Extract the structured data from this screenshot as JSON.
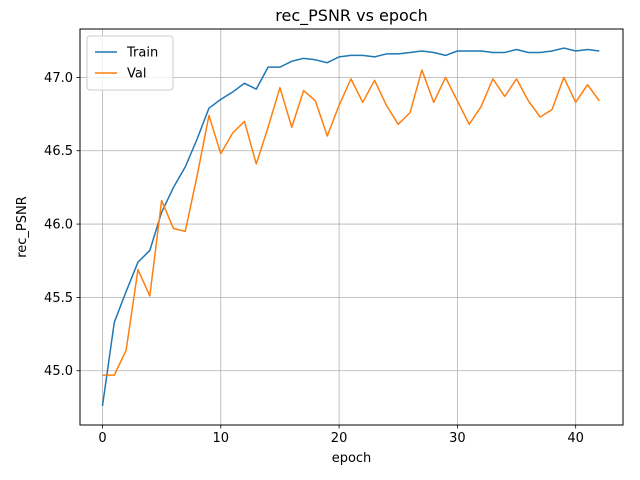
{
  "chart_data": {
    "type": "line",
    "title": "rec_PSNR vs epoch",
    "xlabel": "epoch",
    "ylabel": "rec_PSNR",
    "xlim": [
      -1.9,
      44.0
    ],
    "ylim": [
      44.63,
      47.33
    ],
    "xticks": [
      0,
      10,
      20,
      30,
      40
    ],
    "xtick_labels": [
      "0",
      "10",
      "20",
      "30",
      "40"
    ],
    "yticks": [
      45.0,
      45.5,
      46.0,
      46.5,
      47.0
    ],
    "ytick_labels": [
      "45.0",
      "45.5",
      "46.0",
      "46.5",
      "47.0"
    ],
    "grid": true,
    "legend_position": "top-left",
    "x": [
      0,
      1,
      2,
      3,
      4,
      5,
      6,
      7,
      8,
      9,
      10,
      11,
      12,
      13,
      14,
      15,
      16,
      17,
      18,
      19,
      20,
      21,
      22,
      23,
      24,
      25,
      26,
      27,
      28,
      29,
      30,
      31,
      32,
      33,
      34,
      35,
      36,
      37,
      38,
      39,
      40,
      41,
      42
    ],
    "series": [
      {
        "name": "Train",
        "color": "#1f77b4",
        "values": [
          44.76,
          45.33,
          45.54,
          45.74,
          45.82,
          46.08,
          46.25,
          46.39,
          46.58,
          46.79,
          46.85,
          46.9,
          46.96,
          46.92,
          47.07,
          47.07,
          47.11,
          47.13,
          47.12,
          47.1,
          47.14,
          47.15,
          47.15,
          47.14,
          47.16,
          47.16,
          47.17,
          47.18,
          47.17,
          47.15,
          47.18,
          47.18,
          47.18,
          47.17,
          47.17,
          47.19,
          47.17,
          47.17,
          47.18,
          47.2,
          47.18,
          47.19,
          47.18
        ]
      },
      {
        "name": "Val",
        "color": "#ff7f0e",
        "values": [
          44.97,
          44.97,
          45.14,
          45.69,
          45.51,
          46.16,
          45.97,
          45.95,
          46.33,
          46.74,
          46.48,
          46.62,
          46.7,
          46.41,
          46.66,
          46.93,
          46.66,
          46.91,
          46.84,
          46.6,
          46.81,
          46.99,
          46.83,
          46.98,
          46.81,
          46.68,
          46.76,
          47.05,
          46.83,
          47.0,
          46.84,
          46.68,
          46.8,
          46.99,
          46.87,
          46.99,
          46.84,
          46.73,
          46.78,
          47.0,
          46.83,
          46.95,
          46.84
        ]
      }
    ]
  }
}
